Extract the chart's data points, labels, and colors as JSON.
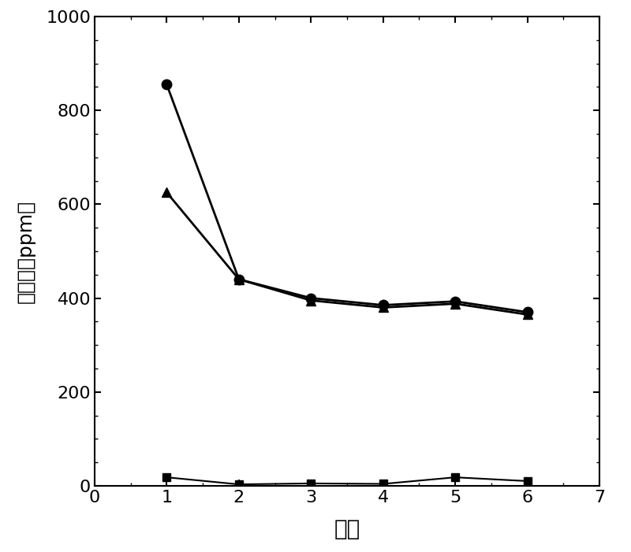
{
  "x": [
    1,
    2,
    3,
    4,
    5,
    6
  ],
  "series_circle": [
    855,
    440,
    400,
    385,
    393,
    370
  ],
  "series_triangle": [
    625,
    440,
    395,
    380,
    388,
    365
  ],
  "series_square": [
    18,
    3,
    5,
    4,
    18,
    10
  ],
  "xlim": [
    0,
    7
  ],
  "ylim": [
    0,
    1000
  ],
  "xticks": [
    0,
    1,
    2,
    3,
    4,
    5,
    6,
    7
  ],
  "yticks": [
    0,
    200,
    400,
    600,
    800,
    1000
  ],
  "xlabel": "水洗",
  "ylabel": "氯离子（ppm）",
  "figsize": [
    8.0,
    7.01
  ],
  "dpi": 100
}
